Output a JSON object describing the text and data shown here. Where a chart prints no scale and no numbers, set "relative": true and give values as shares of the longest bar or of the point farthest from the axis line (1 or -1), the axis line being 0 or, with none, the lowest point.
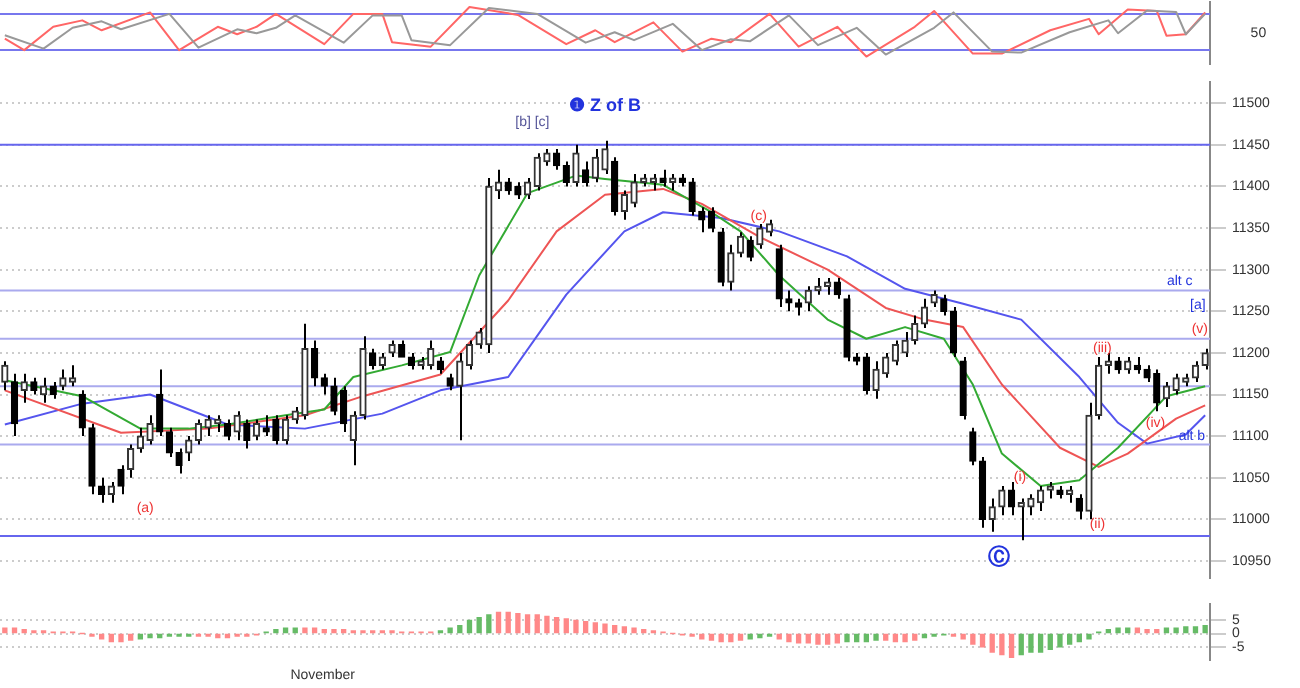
{
  "chart_data": [
    {
      "type": "line",
      "categories": [
        null,
        null,
        null,
        null,
        null,
        null,
        null,
        null,
        null,
        null,
        null,
        null,
        null,
        null,
        null,
        null,
        null,
        null,
        null,
        null,
        null,
        null,
        null,
        null,
        null,
        null,
        null,
        null,
        null,
        null,
        null,
        null,
        null,
        null,
        null,
        null,
        null,
        null,
        null,
        null,
        null,
        null,
        null,
        null,
        null,
        null,
        null,
        null,
        null,
        null,
        null,
        null,
        null,
        null,
        null,
        null,
        null,
        null,
        null,
        null,
        null,
        null,
        null,
        null,
        null,
        null,
        null,
        null,
        null,
        null,
        null,
        null,
        null,
        null,
        null,
        null,
        null,
        null,
        null,
        null,
        null,
        null,
        null,
        null,
        null,
        null,
        null,
        null,
        null,
        null,
        null,
        null,
        null,
        null,
        null,
        null,
        null,
        null,
        null,
        null,
        null,
        null,
        null,
        null,
        null,
        null,
        null,
        null,
        null,
        null,
        null,
        null,
        null,
        null,
        null,
        null,
        null,
        null,
        null,
        null,
        null,
        null,
        null,
        null,
        null
      ],
      "series": [
        {
          "color": "#999999",
          "values": [
            0.43,
            null,
            null,
            null,
            0.16,
            null,
            null,
            0.58,
            null,
            null,
            0.71,
            null,
            0.55,
            null,
            null,
            null,
            null,
            0.86,
            null,
            null,
            0.18,
            null,
            null,
            null,
            0.55,
            null,
            0.47,
            null,
            0.58,
            null,
            0.83,
            null,
            null,
            null,
            null,
            0.28,
            null,
            null,
            0.83,
            null,
            null,
            0.83,
            0.33,
            null,
            null,
            null,
            0.23,
            null,
            null,
            null,
            0.98,
            null,
            null,
            null,
            null,
            0.86,
            null,
            null,
            null,
            null,
            0.28,
            null,
            null,
            0.49,
            null,
            0.33,
            null,
            null,
            null,
            0.66,
            null,
            null,
            0.13,
            null,
            null,
            0.35,
            null,
            0.31,
            null,
            null,
            null,
            0.83,
            null,
            null,
            0.23,
            null,
            null,
            null,
            0.58,
            null,
            null,
            0.04,
            null,
            null,
            null,
            null,
            0.58,
            null,
            0.89,
            null,
            null,
            null,
            0.1,
            null,
            null,
            0.08,
            null,
            null,
            null,
            null,
            0.49,
            null,
            null,
            null,
            0.73,
            0.47,
            null,
            null,
            0.93,
            null,
            null,
            0.9,
            0.45,
            null,
            0.86
          ]
        },
        {
          "color": "#ff6666",
          "values": [
            0.36,
            null,
            0.13,
            null,
            null,
            0.6,
            null,
            null,
            0.73,
            null,
            0.53,
            null,
            null,
            null,
            null,
            0.89,
            null,
            null,
            0.13,
            null,
            null,
            null,
            0.6,
            null,
            0.45,
            null,
            0.6,
            null,
            0.86,
            null,
            null,
            null,
            null,
            0.25,
            null,
            null,
            0.86,
            null,
            null,
            0.86,
            0.29,
            null,
            null,
            null,
            0.2,
            null,
            null,
            null,
            1,
            null,
            null,
            null,
            null,
            0.84,
            null,
            null,
            null,
            null,
            0.25,
            null,
            null,
            0.53,
            null,
            0.29,
            null,
            null,
            null,
            0.69,
            null,
            null,
            0.1,
            null,
            null,
            0.36,
            null,
            0.29,
            null,
            null,
            null,
            0.86,
            null,
            null,
            0.2,
            null,
            null,
            null,
            0.6,
            null,
            null,
            0,
            null,
            null,
            null,
            null,
            0.6,
            null,
            0.92,
            null,
            null,
            null,
            0.06,
            null,
            null,
            0.06,
            null,
            null,
            null,
            null,
            0.53,
            null,
            null,
            null,
            0.76,
            0.45,
            null,
            null,
            0.95,
            null,
            null,
            0.92,
            0.42,
            null,
            0.45,
            null,
            0.89
          ]
        }
      ],
      "relative": true,
      "tick_labels": false,
      "legend": false,
      "ref_lines": [
        {
          "axis": "y",
          "value": 0.86,
          "color": "#7777ee"
        },
        {
          "axis": "y",
          "value": 0.13,
          "color": "#7777ee"
        }
      ],
      "annotations": [
        "50"
      ]
    },
    {
      "type": "candlestick",
      "categories": [
        null,
        null,
        null,
        null,
        null,
        null,
        null,
        null,
        null,
        null,
        null,
        null,
        null,
        null,
        null,
        null,
        null,
        null,
        null,
        null,
        null,
        null,
        null,
        null,
        null,
        null,
        null,
        null,
        null,
        null,
        null,
        null,
        null,
        null,
        null,
        null,
        null,
        null,
        null,
        null,
        null,
        null,
        null,
        null,
        null,
        null,
        null,
        null,
        null,
        null,
        null,
        null,
        null,
        null,
        null,
        null,
        null,
        null,
        null,
        null,
        null,
        null,
        null,
        null,
        null,
        null,
        null,
        null,
        null,
        null,
        null,
        null,
        null,
        null,
        null,
        null,
        null,
        null,
        null,
        null,
        null,
        null,
        null,
        null,
        null,
        null,
        null,
        null,
        null,
        null,
        null,
        null,
        null,
        null,
        null,
        null,
        null,
        null,
        null,
        null,
        null,
        null,
        null,
        null,
        null,
        null,
        null,
        null,
        null,
        null,
        null,
        null,
        null,
        null,
        null,
        null,
        null,
        null,
        null,
        null,
        null,
        null,
        null,
        null,
        null
      ],
      "ohlc": [
        [
          11165,
          11190,
          11155,
          11185
        ],
        [
          11165,
          11175,
          11100,
          11115
        ],
        [
          11155,
          11175,
          11140,
          11165
        ],
        [
          11165,
          11170,
          11150,
          11155
        ],
        [
          11150,
          11170,
          11140,
          11160
        ],
        [
          11160,
          11165,
          11145,
          11150
        ],
        [
          11160,
          11180,
          11155,
          11170
        ],
        [
          11165,
          11185,
          11160,
          11170
        ],
        [
          11150,
          11155,
          11100,
          11110
        ],
        [
          11110,
          11115,
          11030,
          11040
        ],
        [
          11040,
          11050,
          11020,
          11030
        ],
        [
          11030,
          11045,
          11020,
          11040
        ],
        [
          11060,
          11065,
          11030,
          11040
        ],
        [
          11060,
          11090,
          11050,
          11085
        ],
        [
          11085,
          11110,
          11080,
          11100
        ],
        [
          11095,
          11125,
          11090,
          11115
        ],
        [
          11150,
          11180,
          11100,
          11105
        ],
        [
          11105,
          11110,
          11075,
          11080
        ],
        [
          11080,
          11085,
          11055,
          11065
        ],
        [
          11080,
          11100,
          11070,
          11095
        ],
        [
          11095,
          11120,
          11090,
          11115
        ],
        [
          11110,
          11125,
          11100,
          11120
        ],
        [
          11115,
          11125,
          11105,
          11120
        ],
        [
          11115,
          11120,
          11095,
          11100
        ],
        [
          11105,
          11130,
          11095,
          11125
        ],
        [
          11115,
          11120,
          11085,
          11095
        ],
        [
          11100,
          11120,
          11095,
          11115
        ],
        [
          11110,
          11125,
          11100,
          11105
        ],
        [
          11120,
          11125,
          11090,
          11095
        ],
        [
          11095,
          11125,
          11090,
          11120
        ],
        [
          11120,
          11135,
          11115,
          11130
        ],
        [
          11125,
          11235,
          11120,
          11205
        ],
        [
          11205,
          11215,
          11160,
          11170
        ],
        [
          11170,
          11175,
          11150,
          11160
        ],
        [
          11160,
          11170,
          11125,
          11130
        ],
        [
          11155,
          11160,
          11105,
          11115
        ],
        [
          11095,
          11130,
          11065,
          11125
        ],
        [
          11125,
          11220,
          11120,
          11205
        ],
        [
          11200,
          11205,
          11180,
          11185
        ],
        [
          11185,
          11200,
          11180,
          11195
        ],
        [
          11200,
          11215,
          11195,
          11210
        ],
        [
          11210,
          11215,
          11195,
          11195
        ],
        [
          11195,
          11200,
          11180,
          11185
        ],
        [
          11185,
          11195,
          11180,
          11190
        ],
        [
          11185,
          11215,
          11180,
          11205
        ],
        [
          11190,
          11195,
          11175,
          11180
        ],
        [
          11170,
          11175,
          11155,
          11160
        ],
        [
          11160,
          11200,
          11095,
          11190
        ],
        [
          11185,
          11215,
          11180,
          11210
        ],
        [
          11210,
          11230,
          11205,
          11225
        ],
        [
          11210,
          11410,
          11200,
          11400
        ],
        [
          11395,
          11420,
          11385,
          11405
        ],
        [
          11405,
          11410,
          11390,
          11395
        ],
        [
          11400,
          11405,
          11385,
          11390
        ],
        [
          11390,
          11410,
          11385,
          11405
        ],
        [
          11400,
          11440,
          11395,
          11435
        ],
        [
          11430,
          11445,
          11425,
          11440
        ],
        [
          11440,
          11445,
          11420,
          11425
        ],
        [
          11425,
          11430,
          11400,
          11405
        ],
        [
          11405,
          11450,
          11400,
          11440
        ],
        [
          11420,
          11430,
          11400,
          11405
        ],
        [
          11410,
          11445,
          11405,
          11435
        ],
        [
          11420,
          11455,
          11415,
          11445
        ],
        [
          11430,
          11435,
          11365,
          11370
        ],
        [
          11370,
          11395,
          11360,
          11390
        ],
        [
          11380,
          11415,
          11375,
          11405
        ],
        [
          11405,
          11415,
          11400,
          11410
        ],
        [
          11405,
          11415,
          11395,
          11410
        ],
        [
          11410,
          11420,
          11400,
          11405
        ],
        [
          11405,
          11415,
          11395,
          11410
        ],
        [
          11410,
          11415,
          11400,
          11405
        ],
        [
          11405,
          11410,
          11365,
          11370
        ],
        [
          11370,
          11375,
          11345,
          11360
        ],
        [
          11370,
          11375,
          11345,
          11350
        ],
        [
          11345,
          11350,
          11280,
          11285
        ],
        [
          11285,
          11330,
          11275,
          11320
        ],
        [
          11320,
          11345,
          11315,
          11340
        ],
        [
          11335,
          11340,
          11310,
          11315
        ],
        [
          11330,
          11355,
          11325,
          11350
        ],
        [
          11345,
          11360,
          11340,
          11355
        ],
        [
          11325,
          11330,
          11255,
          11265
        ],
        [
          11265,
          11275,
          11250,
          11260
        ],
        [
          11260,
          11265,
          11245,
          11255
        ],
        [
          11260,
          11280,
          11250,
          11275
        ],
        [
          11275,
          11290,
          11270,
          11280
        ],
        [
          11280,
          11290,
          11270,
          11285
        ],
        [
          11285,
          11290,
          11265,
          11270
        ],
        [
          11265,
          11270,
          11190,
          11195
        ],
        [
          11195,
          11200,
          11185,
          11190
        ],
        [
          11195,
          11200,
          11150,
          11155
        ],
        [
          11155,
          11190,
          11145,
          11180
        ],
        [
          11175,
          11200,
          11170,
          11195
        ],
        [
          11190,
          11215,
          11185,
          11210
        ],
        [
          11200,
          11225,
          11195,
          11215
        ],
        [
          11215,
          11245,
          11210,
          11235
        ],
        [
          11235,
          11265,
          11230,
          11255
        ],
        [
          11260,
          11275,
          11255,
          11270
        ],
        [
          11265,
          11270,
          11245,
          11250
        ],
        [
          11250,
          11255,
          11195,
          11200
        ],
        [
          11190,
          11195,
          11120,
          11125
        ],
        [
          11105,
          11110,
          11065,
          11070
        ],
        [
          11070,
          11075,
          10990,
          11000
        ],
        [
          11000,
          11025,
          10985,
          11015
        ],
        [
          11015,
          11040,
          11005,
          11035
        ],
        [
          11035,
          11045,
          11005,
          11015
        ],
        [
          11015,
          11025,
          10975,
          11020
        ],
        [
          11015,
          11030,
          11005,
          11025
        ],
        [
          11020,
          11040,
          11010,
          11035
        ],
        [
          11035,
          11045,
          11025,
          11040
        ],
        [
          11035,
          11040,
          11025,
          11030
        ],
        [
          11030,
          11040,
          11020,
          11035
        ],
        [
          11025,
          11030,
          11000,
          11010
        ],
        [
          11010,
          11140,
          11000,
          11125
        ],
        [
          11125,
          11195,
          11120,
          11185
        ],
        [
          11185,
          11200,
          11175,
          11190
        ],
        [
          11190,
          11195,
          11175,
          11180
        ],
        [
          11180,
          11195,
          11175,
          11190
        ],
        [
          11185,
          11195,
          11175,
          11180
        ],
        [
          11180,
          11185,
          11165,
          11170
        ],
        [
          11175,
          11180,
          11130,
          11140
        ],
        [
          11145,
          11165,
          11135,
          11160
        ],
        [
          11155,
          11175,
          11150,
          11170
        ],
        [
          11165,
          11175,
          11160,
          11170
        ],
        [
          11170,
          11190,
          11165,
          11185
        ],
        [
          11185,
          11205,
          11180,
          11200
        ]
      ],
      "series": [
        {
          "type": "line",
          "color": "#33aa33",
          "values": [
            11167,
            null,
            null,
            null,
            null,
            null,
            null,
            null,
            11148,
            null,
            null,
            null,
            null,
            null,
            11109,
            null,
            null,
            null,
            null,
            11109,
            null,
            null,
            null,
            11114,
            null,
            null,
            null,
            null,
            null,
            11125,
            null,
            null,
            null,
            11132,
            null,
            null,
            11171,
            null,
            null,
            null,
            null,
            11185,
            null,
            null,
            null,
            null,
            11201,
            null,
            null,
            11293,
            null,
            null,
            null,
            null,
            11392,
            null,
            null,
            null,
            null,
            11413,
            null,
            null,
            11409,
            null,
            null,
            null,
            null,
            null,
            11402,
            null,
            null,
            null,
            null,
            11369,
            null,
            null,
            11346,
            null,
            null,
            null,
            11293,
            null,
            null,
            null,
            null,
            11240,
            null,
            null,
            null,
            11217,
            null,
            null,
            null,
            11231,
            null,
            null,
            null,
            11217,
            null,
            null,
            11162,
            null,
            null,
            11079,
            null,
            null,
            null,
            11040,
            null,
            null,
            null,
            11047,
            null,
            null,
            null,
            11086,
            null,
            null,
            null,
            null,
            11148,
            null,
            null,
            null,
            11160
          ]
        },
        {
          "type": "line",
          "color": "#ee5555",
          "values": [
            11155,
            null,
            null,
            null,
            null,
            null,
            null,
            null,
            null,
            null,
            null,
            null,
            11104,
            null,
            null,
            null,
            null,
            null,
            null,
            null,
            null,
            11109,
            null,
            null,
            null,
            null,
            null,
            null,
            null,
            null,
            null,
            11125,
            null,
            null,
            null,
            null,
            null,
            11148,
            null,
            null,
            null,
            null,
            null,
            null,
            null,
            11174,
            null,
            null,
            null,
            null,
            null,
            null,
            11263,
            null,
            null,
            null,
            null,
            11346,
            null,
            null,
            null,
            null,
            11390,
            null,
            null,
            null,
            null,
            null,
            11397,
            null,
            null,
            null,
            11379,
            null,
            null,
            null,
            null,
            null,
            11339,
            null,
            null,
            null,
            null,
            null,
            null,
            11300,
            null,
            null,
            null,
            null,
            null,
            11254,
            null,
            null,
            null,
            11240,
            null,
            null,
            null,
            11231,
            null,
            null,
            null,
            11162,
            null,
            null,
            null,
            null,
            null,
            11086,
            null,
            null,
            null,
            11063,
            null,
            null,
            11079,
            null,
            null,
            null,
            null,
            11121,
            null,
            null,
            11137
          ]
        },
        {
          "type": "line",
          "color": "#5555ee",
          "values": [
            11114,
            null,
            null,
            null,
            null,
            null,
            null,
            null,
            11139,
            null,
            null,
            null,
            null,
            null,
            null,
            11150,
            null,
            null,
            null,
            null,
            null,
            null,
            null,
            11114,
            null,
            null,
            null,
            null,
            null,
            null,
            null,
            11109,
            null,
            null,
            null,
            null,
            null,
            null,
            null,
            11127,
            null,
            null,
            null,
            null,
            null,
            11155,
            null,
            null,
            null,
            null,
            null,
            null,
            11171,
            null,
            null,
            null,
            null,
            null,
            11270,
            null,
            null,
            null,
            null,
            null,
            11346,
            null,
            null,
            null,
            11369,
            null,
            null,
            null,
            null,
            null,
            11362,
            null,
            null,
            null,
            null,
            null,
            11346,
            null,
            null,
            null,
            null,
            null,
            null,
            11316,
            null,
            null,
            null,
            null,
            null,
            11277,
            null,
            null,
            null,
            null,
            null,
            11259,
            null,
            null,
            null,
            null,
            null,
            11240,
            null,
            null,
            null,
            null,
            null,
            11171,
            null,
            null,
            null,
            11116,
            null,
            null,
            11091,
            null,
            null,
            null,
            11102,
            null,
            11125
          ]
        }
      ],
      "ylim": [
        10930,
        11525
      ],
      "yticks": [
        10950,
        11000,
        11050,
        11100,
        11150,
        11200,
        11250,
        11300,
        11350,
        11400,
        11450,
        11500
      ],
      "tick_labels": "y",
      "grid": "y",
      "legend": false,
      "ref_lines": [
        {
          "axis": "y",
          "value": 11450,
          "color": "#6666ee"
        },
        {
          "axis": "y",
          "value": 11275,
          "color": "#aaaaee"
        },
        {
          "axis": "y",
          "value": 11217,
          "color": "#aaaaee"
        },
        {
          "axis": "y",
          "value": 11160,
          "color": "#aaaaee"
        },
        {
          "axis": "y",
          "value": 11090,
          "color": "#aaaaee"
        },
        {
          "axis": "y",
          "value": 10980,
          "color": "#6666ee"
        }
      ],
      "annotations": [
        "❶ Z of B",
        "[b] [c]",
        "(a)",
        "(c)",
        {
          "text": "(i)",
          "y": 11051
        },
        {
          "text": "(ii)",
          "y": 10994
        },
        {
          "text": "(iii)",
          "y": 11206
        },
        {
          "text": "(iv)",
          "y": 11116
        },
        {
          "text": "(v)",
          "y": 11229
        },
        "[a]",
        {
          "text": "alt c",
          "y": 11286
        },
        {
          "text": "alt b",
          "y": 11100
        },
        "Ⓒ"
      ]
    },
    {
      "type": "bar",
      "categories": [
        null,
        null,
        null,
        null,
        null,
        null,
        null,
        null,
        null,
        null,
        null,
        null,
        null,
        null,
        null,
        null,
        null,
        null,
        null,
        null,
        null,
        null,
        null,
        null,
        null,
        null,
        null,
        null,
        null,
        null,
        null,
        null,
        null,
        null,
        null,
        null,
        null,
        null,
        null,
        null,
        null,
        null,
        null,
        null,
        null,
        null,
        null,
        null,
        null,
        null,
        null,
        null,
        null,
        null,
        null,
        null,
        null,
        null,
        null,
        null,
        null,
        null,
        null,
        null,
        null,
        null,
        null,
        null,
        null,
        null,
        null,
        null,
        null,
        null,
        null,
        null,
        null,
        null,
        null,
        null,
        null,
        null,
        null,
        null,
        null,
        null,
        null,
        null,
        null,
        null,
        null,
        null,
        null,
        null,
        null,
        null,
        null,
        null,
        null,
        null,
        null,
        null,
        null,
        null,
        null,
        null,
        null,
        null,
        null,
        null,
        null,
        null,
        null,
        null,
        null,
        null,
        null,
        null,
        null,
        null,
        null,
        null,
        null,
        null,
        null
      ],
      "values": [
        2,
        2,
        1.5,
        1,
        1,
        0.5,
        0.5,
        0.5,
        0,
        -1,
        -2,
        -3,
        -3,
        -2.5,
        -2,
        -1.5,
        -1.5,
        -1,
        -1,
        -1,
        -1,
        -1,
        -1.5,
        -1.5,
        -1,
        -1,
        -0.5,
        0.5,
        1.5,
        2,
        2,
        2,
        2,
        1.5,
        1.5,
        1.5,
        1,
        1,
        1,
        1,
        1,
        0.5,
        0.5,
        0.5,
        0.5,
        1,
        2,
        3,
        5,
        6,
        7,
        8,
        8,
        7.5,
        7,
        7,
        6.5,
        6,
        5.5,
        5,
        4.5,
        4,
        3.5,
        3,
        2.5,
        2,
        1.5,
        1,
        0.5,
        0,
        -0.5,
        -1,
        -2,
        -2.5,
        -3,
        -3,
        -2.5,
        -2,
        -1.5,
        -1,
        -2,
        -3,
        -3.5,
        -3.5,
        -4,
        -4,
        -3.5,
        -3,
        -3,
        -3,
        -2.5,
        -2.5,
        -3,
        -3,
        -2.5,
        -1.5,
        -1,
        -0.5,
        -1,
        -2,
        -4,
        -5,
        -7,
        -8,
        -9,
        -8,
        -7,
        -7,
        -6,
        -5,
        -4,
        -3,
        -2,
        0.5,
        1.5,
        2,
        2,
        2,
        1.5,
        1.5,
        2,
        2,
        2.5,
        2.5,
        3
      ],
      "colors": [
        "#ff8888",
        "#ff8888",
        "#ff8888",
        "#ff8888",
        "#ff8888",
        "#ff8888",
        "#ff8888",
        "#ff8888",
        "#ff8888",
        "#ff8888",
        "#ff8888",
        "#ff8888",
        "#ff8888",
        "#ff8888",
        "#66bb66",
        "#66bb66",
        "#66bb66",
        "#66bb66",
        "#66bb66",
        "#66bb66",
        "#ff8888",
        "#ff8888",
        "#ff8888",
        "#ff8888",
        "#ff8888",
        "#ff8888",
        "#ff8888",
        "#66bb66",
        "#66bb66",
        "#66bb66",
        "#66bb66",
        "#ff8888",
        "#ff8888",
        "#ff8888",
        "#ff8888",
        "#ff8888",
        "#ff8888",
        "#ff8888",
        "#ff8888",
        "#ff8888",
        "#ff8888",
        "#ff8888",
        "#ff8888",
        "#ff8888",
        "#ff8888",
        "#66bb66",
        "#66bb66",
        "#66bb66",
        "#66bb66",
        "#66bb66",
        "#66bb66",
        "#ff8888",
        "#ff8888",
        "#ff8888",
        "#ff8888",
        "#ff8888",
        "#ff8888",
        "#ff8888",
        "#ff8888",
        "#ff8888",
        "#ff8888",
        "#ff8888",
        "#ff8888",
        "#ff8888",
        "#ff8888",
        "#ff8888",
        "#ff8888",
        "#ff8888",
        "#ff8888",
        "#ff8888",
        "#ff8888",
        "#ff8888",
        "#ff8888",
        "#ff8888",
        "#ff8888",
        "#ff8888",
        "#ff8888",
        "#66bb66",
        "#66bb66",
        "#66bb66",
        "#ff8888",
        "#ff8888",
        "#ff8888",
        "#ff8888",
        "#ff8888",
        "#ff8888",
        "#ff8888",
        "#66bb66",
        "#66bb66",
        "#66bb66",
        "#66bb66",
        "#ff8888",
        "#ff8888",
        "#ff8888",
        "#ff8888",
        "#66bb66",
        "#66bb66",
        "#66bb66",
        "#ff8888",
        "#ff8888",
        "#ff8888",
        "#ff8888",
        "#ff8888",
        "#ff8888",
        "#ff8888",
        "#66bb66",
        "#66bb66",
        "#66bb66",
        "#66bb66",
        "#66bb66",
        "#66bb66",
        "#66bb66",
        "#66bb66",
        "#66bb66",
        "#66bb66",
        "#66bb66",
        "#66bb66",
        "#ff8888",
        "#ff8888",
        "#ff8888",
        "#66bb66",
        "#66bb66",
        "#66bb66",
        "#66bb66",
        "#66bb66"
      ],
      "ylim": [
        -10,
        11
      ],
      "yticks": [
        5,
        0,
        -5
      ],
      "tick_labels": "y",
      "grid": "y",
      "legend": false,
      "xlabel": "November"
    }
  ]
}
